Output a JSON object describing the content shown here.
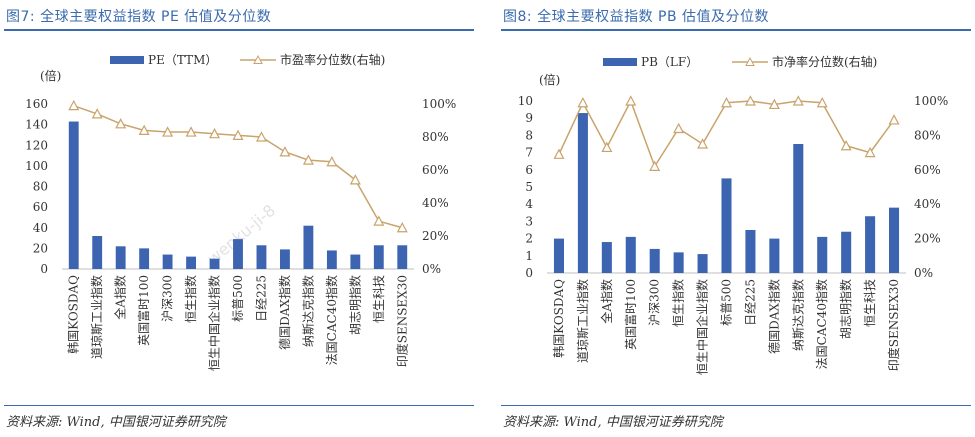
{
  "colors": {
    "accent": "#3A6BAE",
    "bar": "#3C64B1",
    "line": "#C9A36B"
  },
  "charts": [
    {
      "title": "图7:  全球主要权益指数 PE 估值及分位数",
      "source": "资料来源:  Wind,  中国银河证券研究院",
      "watermark": "wenku-ji-8"
    },
    {
      "title": "图8:  全球主要权益指数 PB 估值及分位数",
      "source": "资料来源:  Wind,  中国银河证券研究院"
    }
  ],
  "chart_data": [
    {
      "type": "bar",
      "title": "图7: 全球主要权益指数 PE 估值及分位数",
      "unit_label": "(倍)",
      "categories": [
        "韩国KOSDAQ",
        "道琼斯工业指数",
        "全A指数",
        "英国富时100",
        "沪深300",
        "恒生指数",
        "恒生中国企业指数",
        "标普500",
        "日经225",
        "德国DAX指数",
        "纳斯达克指数",
        "法国CAC40指数",
        "胡志明指数",
        "恒生科技",
        "印度SENSEX30"
      ],
      "series": [
        {
          "name": "PE（TTM）",
          "type": "bar",
          "axis": "left",
          "values": [
            143,
            32,
            22,
            20,
            14,
            12,
            10,
            29,
            23,
            19,
            42,
            18,
            14,
            23,
            23
          ]
        },
        {
          "name": "市盈率分位数(右轴)",
          "type": "line",
          "axis": "right",
          "values": [
            0.99,
            0.94,
            0.88,
            0.84,
            0.83,
            0.83,
            0.82,
            0.81,
            0.8,
            0.71,
            0.66,
            0.65,
            0.54,
            0.29,
            0.25
          ]
        }
      ],
      "ylim": [
        0,
        160
      ],
      "yticks": [
        0,
        20,
        40,
        60,
        80,
        100,
        120,
        140,
        160
      ],
      "y2lim": [
        0,
        1
      ],
      "y2ticks": [
        "0%",
        "20%",
        "40%",
        "60%",
        "80%",
        "100%"
      ],
      "legend": "top"
    },
    {
      "type": "bar",
      "title": "图8: 全球主要权益指数 PB 估值及分位数",
      "unit_label": "(倍)",
      "categories": [
        "韩国KOSDAQ",
        "道琼斯工业指数",
        "全A指数",
        "英国富时100",
        "沪深300",
        "恒生指数",
        "恒生中国企业指数",
        "标普500",
        "日经225",
        "德国DAX指数",
        "纳斯达克指数",
        "法国CAC40指数",
        "胡志明指数",
        "恒生科技",
        "印度SENSEX30"
      ],
      "series": [
        {
          "name": "PB（LF）",
          "type": "bar",
          "axis": "left",
          "values": [
            2.0,
            9.3,
            1.8,
            2.1,
            1.4,
            1.2,
            1.1,
            5.5,
            2.5,
            2.0,
            7.5,
            2.1,
            2.4,
            3.3,
            3.8
          ]
        },
        {
          "name": "市净率分位数(右轴)",
          "type": "line",
          "axis": "right",
          "values": [
            0.69,
            0.99,
            0.73,
            1.0,
            0.62,
            0.84,
            0.75,
            0.99,
            1.0,
            0.98,
            1.0,
            0.99,
            0.74,
            0.7,
            0.89
          ]
        }
      ],
      "ylim": [
        0,
        10
      ],
      "yticks": [
        0,
        1,
        2,
        3,
        4,
        5,
        6,
        7,
        8,
        9,
        10
      ],
      "y2lim": [
        0,
        1
      ],
      "y2ticks": [
        "0%",
        "20%",
        "40%",
        "60%",
        "80%",
        "100%"
      ],
      "legend": "top"
    }
  ]
}
